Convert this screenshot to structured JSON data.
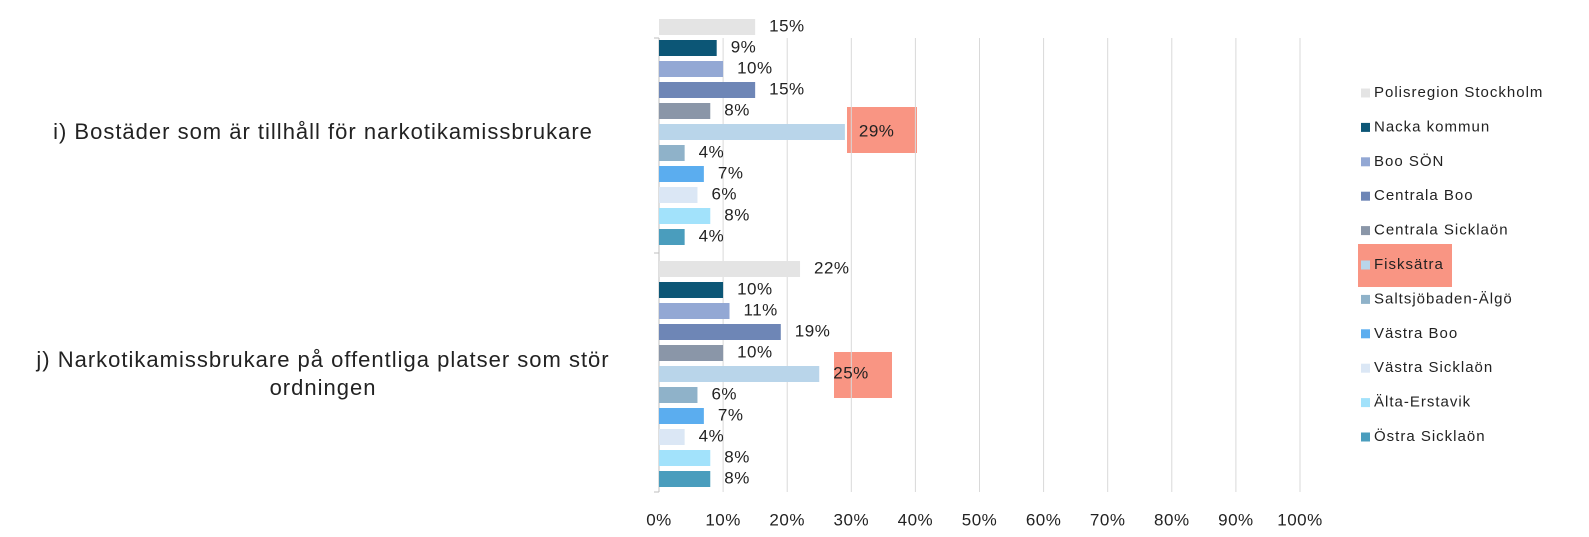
{
  "chart_data": {
    "type": "bar",
    "orientation": "horizontal",
    "categories": [
      "i) Bostäder som är tillhåll för narkotikamissbrukare",
      "j) Narkotikamissbrukare på offentliga platser som stör ordningen"
    ],
    "series": [
      {
        "name": "Polisregion Stockholm",
        "color": "#e4e4e4",
        "values": [
          15,
          22
        ],
        "value_labels": [
          "15%",
          "22%"
        ]
      },
      {
        "name": "Nacka kommun",
        "color": "#0c5676",
        "values": [
          9,
          10
        ],
        "value_labels": [
          "9%",
          "10%"
        ]
      },
      {
        "name": "Boo SÖN",
        "color": "#93a8d4",
        "values": [
          10,
          11
        ],
        "value_labels": [
          "10%",
          "11%"
        ]
      },
      {
        "name": "Centrala Boo",
        "color": "#6e86b6",
        "values": [
          15,
          19
        ],
        "value_labels": [
          "15%",
          "19%"
        ]
      },
      {
        "name": "Centrala Sicklaön",
        "color": "#8a96a8",
        "values": [
          8,
          10
        ],
        "value_labels": [
          "8%",
          "10%"
        ]
      },
      {
        "name": "Fisksätra",
        "color": "#b9d5ea",
        "values": [
          29,
          25
        ],
        "value_labels": [
          "29%",
          "25%"
        ]
      },
      {
        "name": "Saltsjöbaden-Älgö",
        "color": "#8fb2c9",
        "values": [
          4,
          6
        ],
        "value_labels": [
          "4%",
          "6%"
        ]
      },
      {
        "name": "Västra Boo",
        "color": "#5badef",
        "values": [
          7,
          7
        ],
        "value_labels": [
          "7%",
          "7%"
        ]
      },
      {
        "name": "Västra Sicklaön",
        "color": "#dbe7f5",
        "values": [
          6,
          4
        ],
        "value_labels": [
          "6%",
          "4%"
        ]
      },
      {
        "name": "Älta-Erstavik",
        "color": "#a2e2fb",
        "values": [
          8,
          8
        ],
        "value_labels": [
          "8%",
          "8%"
        ]
      },
      {
        "name": "Östra Sicklaön",
        "color": "#4a9dbd",
        "values": [
          4,
          8
        ],
        "value_labels": [
          "4%",
          "8%"
        ]
      }
    ],
    "xlim": [
      0,
      100
    ],
    "xticks": [
      {
        "value": 0,
        "label": "0%"
      },
      {
        "value": 10,
        "label": "10%"
      },
      {
        "value": 20,
        "label": "20%"
      },
      {
        "value": 30,
        "label": "30%"
      },
      {
        "value": 40,
        "label": "40%"
      },
      {
        "value": 50,
        "label": "50%"
      },
      {
        "value": 60,
        "label": "60%"
      },
      {
        "value": 70,
        "label": "70%"
      },
      {
        "value": 80,
        "label": "80%"
      },
      {
        "value": 90,
        "label": "90%"
      },
      {
        "value": 100,
        "label": "100%"
      }
    ],
    "grid": true,
    "legend": "right"
  }
}
